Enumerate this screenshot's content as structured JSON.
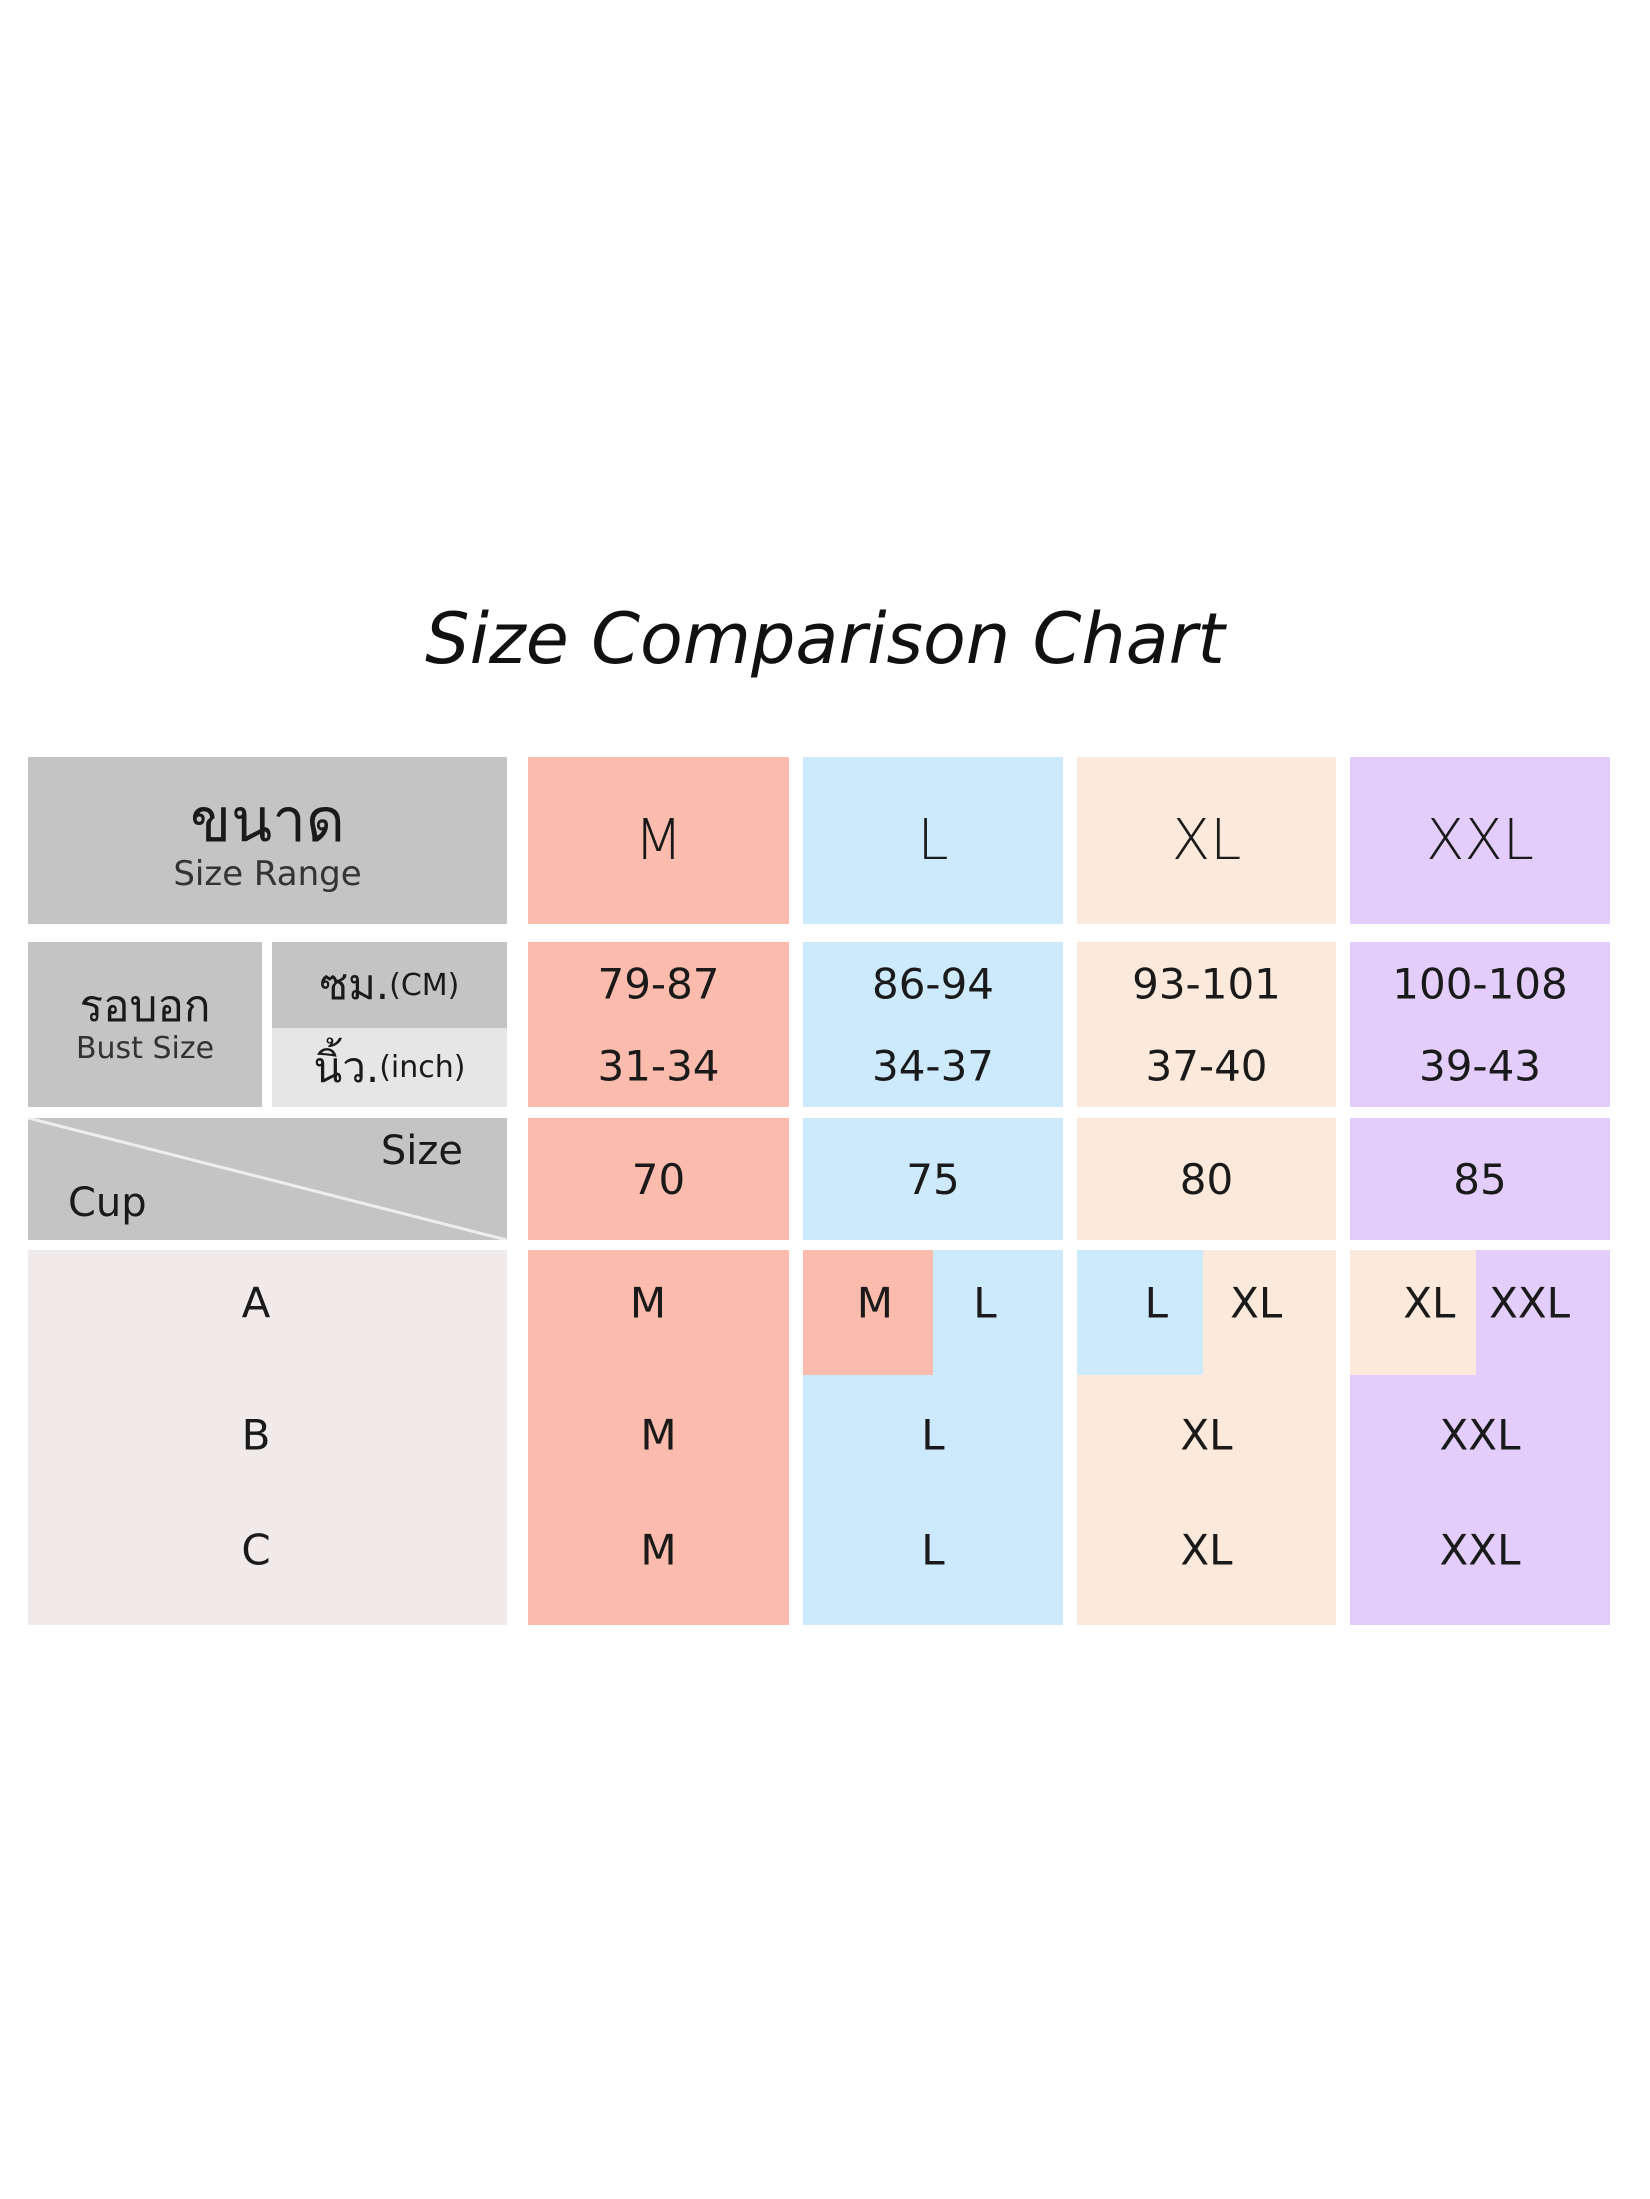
{
  "title": "Size Comparison Chart",
  "colors": {
    "header_gray": "#c4c4c4",
    "inch_gray": "#e6e6e6",
    "cup_bg": "#f0eaea",
    "M": "#fbbcae",
    "L": "#cdeafc",
    "XL": "#fbeadb",
    "XXL": "#e3cdfa"
  },
  "header": {
    "thai": "ขนาด",
    "english": "Size Range"
  },
  "bust": {
    "thai": "รอบอก",
    "english": "Bust Size",
    "cm_label_thai": "ซม.",
    "cm_label": "(CM)",
    "inch_label_thai": "นิ้ว.",
    "inch_label": "(inch)"
  },
  "size_cup": {
    "size": "Size",
    "cup": "Cup"
  },
  "columns": [
    {
      "size": "M",
      "cm": "79-87",
      "inch": "31-34",
      "band": "70",
      "A": [
        "M"
      ],
      "B": "M",
      "C": "M"
    },
    {
      "size": "L",
      "cm": "86-94",
      "inch": "34-37",
      "band": "75",
      "A": [
        "M",
        "L"
      ],
      "B": "L",
      "C": "L"
    },
    {
      "size": "XL",
      "cm": "93-101",
      "inch": "37-40",
      "band": "80",
      "A": [
        "L",
        "XL"
      ],
      "B": "XL",
      "C": "XL"
    },
    {
      "size": "XXL",
      "cm": "100-108",
      "inch": "39-43",
      "band": "85",
      "A": [
        "XL",
        "XXL"
      ],
      "B": "XXL",
      "C": "XXL"
    }
  ],
  "cups": [
    "A",
    "B",
    "C"
  ]
}
